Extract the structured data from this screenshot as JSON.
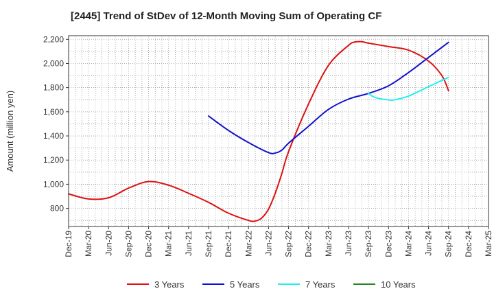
{
  "chart_data": {
    "type": "line",
    "title": "[2445]  Trend of StDev of 12-Month Moving Sum of Operating CF",
    "ylabel": "Amount (million yen)",
    "xlabel": "",
    "ylim": [
      650,
      2230
    ],
    "yticks": [
      800,
      1000,
      1200,
      1400,
      1600,
      1800,
      2000,
      2200
    ],
    "ytick_labels": [
      "800",
      "1,000",
      "1,200",
      "1,400",
      "1,600",
      "1,800",
      "2,000",
      "2,200"
    ],
    "x_categories": [
      "Dec-19",
      "Mar-20",
      "Jun-20",
      "Sep-20",
      "Dec-20",
      "Mar-21",
      "Jun-21",
      "Sep-21",
      "Dec-21",
      "Mar-22",
      "Jun-22",
      "Sep-22",
      "Dec-22",
      "Mar-23",
      "Jun-23",
      "Sep-23",
      "Dec-23",
      "Mar-24",
      "Jun-24",
      "Sep-24",
      "Dec-24",
      "Mar-25"
    ],
    "grid": true,
    "legend_position": "bottom",
    "series": [
      {
        "name": "3 Years",
        "color": "#dd1111",
        "points": [
          [
            "Dec-19",
            920
          ],
          [
            "Mar-20",
            878
          ],
          [
            "Jun-20",
            888
          ],
          [
            "Sep-20",
            968
          ],
          [
            "Dec-20",
            1022
          ],
          [
            "Mar-21",
            992
          ],
          [
            "Jun-21",
            925
          ],
          [
            "Sep-21",
            850
          ],
          [
            "Dec-21",
            760
          ],
          [
            "Mar-22",
            700
          ],
          [
            "Apr-22",
            695
          ],
          [
            "May-22",
            722
          ],
          [
            "Jun-22",
            795
          ],
          [
            "Jul-22",
            925
          ],
          [
            "Aug-22",
            1090
          ],
          [
            "Sep-22",
            1270
          ],
          [
            "Dec-22",
            1665
          ],
          [
            "Mar-23",
            1985
          ],
          [
            "Jun-23",
            2150
          ],
          [
            "Jul-23",
            2178
          ],
          [
            "Aug-23",
            2180
          ],
          [
            "Sep-23",
            2168
          ],
          [
            "Dec-23",
            2140
          ],
          [
            "Mar-24",
            2110
          ],
          [
            "Jun-24",
            2020
          ],
          [
            "Aug-24",
            1900
          ],
          [
            "Sep-24",
            1775
          ]
        ]
      },
      {
        "name": "5 Years",
        "color": "#1111cc",
        "points": [
          [
            "Sep-21",
            1565
          ],
          [
            "Dec-21",
            1445
          ],
          [
            "Mar-22",
            1345
          ],
          [
            "Jun-22",
            1262
          ],
          [
            "Jul-22",
            1258
          ],
          [
            "Aug-22",
            1283
          ],
          [
            "Sep-22",
            1340
          ],
          [
            "Dec-22",
            1480
          ],
          [
            "Mar-23",
            1620
          ],
          [
            "Jun-23",
            1705
          ],
          [
            "Sep-23",
            1752
          ],
          [
            "Dec-23",
            1815
          ],
          [
            "Mar-24",
            1925
          ],
          [
            "Jun-24",
            2050
          ],
          [
            "Sep-24",
            2175
          ]
        ]
      },
      {
        "name": "7 Years",
        "color": "#22eeee",
        "points": [
          [
            "Sep-23",
            1752
          ],
          [
            "Oct-23",
            1718
          ],
          [
            "Dec-23",
            1698
          ],
          [
            "Jan-24",
            1700
          ],
          [
            "Mar-24",
            1730
          ],
          [
            "Jun-24",
            1808
          ],
          [
            "Sep-24",
            1885
          ]
        ]
      },
      {
        "name": "10 Years",
        "color": "#228822",
        "points": []
      }
    ]
  }
}
